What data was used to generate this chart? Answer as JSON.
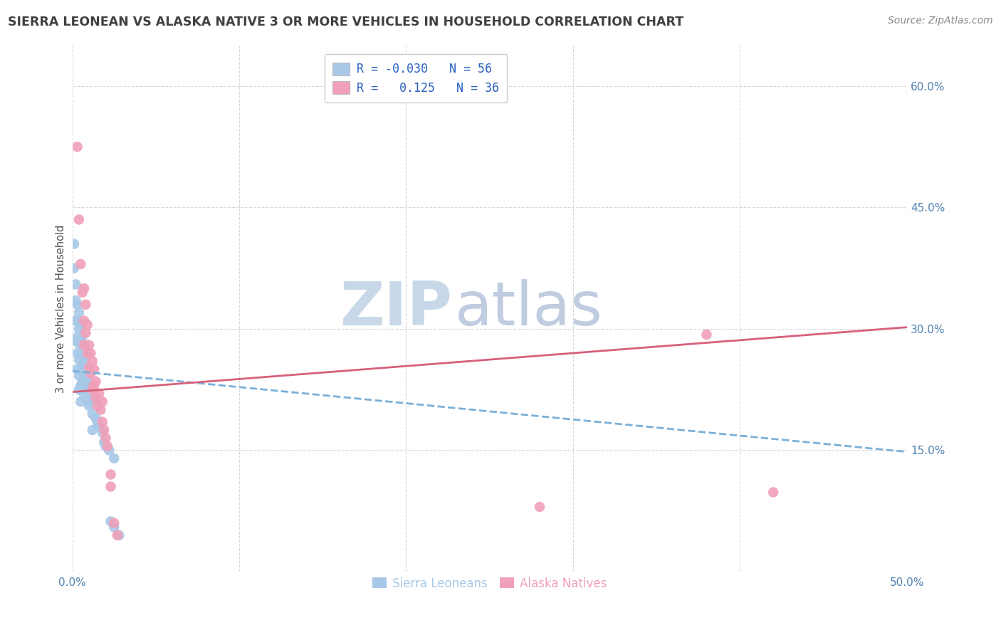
{
  "title": "SIERRA LEONEAN VS ALASKA NATIVE 3 OR MORE VEHICLES IN HOUSEHOLD CORRELATION CHART",
  "source": "Source: ZipAtlas.com",
  "xlabel_blue": "Sierra Leoneans",
  "xlabel_pink": "Alaska Natives",
  "ylabel": "3 or more Vehicles in Household",
  "xlim": [
    0.0,
    0.5
  ],
  "ylim": [
    0.0,
    0.65
  ],
  "xtick_vals": [
    0.0,
    0.5
  ],
  "xtick_labels": [
    "0.0%",
    "50.0%"
  ],
  "yticks_right": [
    0.15,
    0.3,
    0.45,
    0.6
  ],
  "ytick_right_labels": [
    "15.0%",
    "30.0%",
    "45.0%",
    "60.0%"
  ],
  "r_blue": -0.03,
  "n_blue": 56,
  "r_pink": 0.125,
  "n_pink": 36,
  "blue_color": "#a8c8e8",
  "pink_color": "#f0a0b8",
  "trend_blue_color": "#7ab0d8",
  "trend_pink_color": "#d8607a",
  "legend_r_color": "#2860c0",
  "background_color": "#ffffff",
  "grid_color": "#d8d8d8",
  "watermark_ZIP_color": "#c8d8e8",
  "watermark_atlas_color": "#c0cce0",
  "title_color": "#404040",
  "axis_tick_color": "#5080b0",
  "ylabel_color": "#505050",
  "blue_scatter_x": [
    0.001,
    0.001,
    0.002,
    0.002,
    0.002,
    0.002,
    0.003,
    0.003,
    0.003,
    0.003,
    0.003,
    0.004,
    0.004,
    0.004,
    0.004,
    0.004,
    0.004,
    0.005,
    0.005,
    0.005,
    0.005,
    0.005,
    0.005,
    0.006,
    0.006,
    0.006,
    0.006,
    0.007,
    0.007,
    0.007,
    0.007,
    0.008,
    0.008,
    0.008,
    0.009,
    0.009,
    0.009,
    0.01,
    0.01,
    0.01,
    0.011,
    0.012,
    0.012,
    0.012,
    0.013,
    0.014,
    0.015,
    0.016,
    0.018,
    0.019,
    0.02,
    0.022,
    0.023,
    0.025,
    0.025,
    0.028
  ],
  "blue_scatter_y": [
    0.405,
    0.375,
    0.355,
    0.335,
    0.31,
    0.285,
    0.33,
    0.31,
    0.29,
    0.27,
    0.25,
    0.32,
    0.3,
    0.282,
    0.262,
    0.242,
    0.225,
    0.305,
    0.285,
    0.268,
    0.248,
    0.23,
    0.21,
    0.29,
    0.27,
    0.252,
    0.233,
    0.278,
    0.258,
    0.24,
    0.22,
    0.265,
    0.245,
    0.225,
    0.252,
    0.232,
    0.212,
    0.242,
    0.222,
    0.205,
    0.23,
    0.215,
    0.195,
    0.175,
    0.21,
    0.19,
    0.185,
    0.18,
    0.172,
    0.16,
    0.155,
    0.15,
    0.062,
    0.14,
    0.055,
    0.045
  ],
  "pink_scatter_x": [
    0.003,
    0.004,
    0.005,
    0.006,
    0.007,
    0.007,
    0.007,
    0.008,
    0.008,
    0.009,
    0.009,
    0.01,
    0.01,
    0.011,
    0.011,
    0.012,
    0.012,
    0.013,
    0.013,
    0.014,
    0.014,
    0.015,
    0.016,
    0.017,
    0.018,
    0.018,
    0.019,
    0.02,
    0.021,
    0.023,
    0.023,
    0.025,
    0.027,
    0.28,
    0.38,
    0.42
  ],
  "pink_scatter_y": [
    0.525,
    0.435,
    0.38,
    0.345,
    0.31,
    0.28,
    0.35,
    0.295,
    0.33,
    0.27,
    0.305,
    0.252,
    0.28,
    0.245,
    0.27,
    0.225,
    0.26,
    0.23,
    0.25,
    0.215,
    0.235,
    0.205,
    0.22,
    0.2,
    0.185,
    0.21,
    0.175,
    0.165,
    0.155,
    0.12,
    0.105,
    0.06,
    0.045,
    0.08,
    0.293,
    0.098
  ],
  "blue_trend_x": [
    0.0,
    0.5
  ],
  "blue_trend_y_start": 0.248,
  "blue_trend_y_end": 0.148,
  "pink_trend_x": [
    0.0,
    0.5
  ],
  "pink_trend_y_start": 0.222,
  "pink_trend_y_end": 0.302
}
